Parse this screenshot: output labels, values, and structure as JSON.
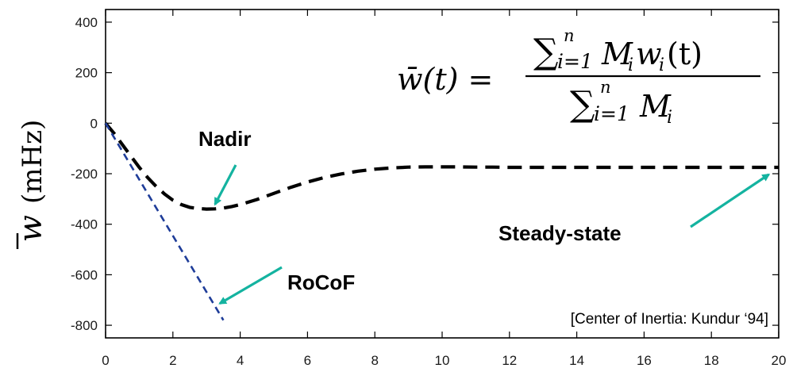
{
  "chart_data": {
    "type": "line",
    "title": "",
    "xlabel": "",
    "ylabel": "w̄ (mHz)",
    "xlim": [
      0,
      20
    ],
    "ylim": [
      -850,
      450
    ],
    "x_ticks": [
      "0",
      "2",
      "4",
      "6",
      "8",
      "10",
      "12",
      "14",
      "16",
      "18",
      "20"
    ],
    "y_ticks": [
      "400",
      "200",
      "0",
      "-200",
      "-400",
      "-600",
      "-800"
    ],
    "grid": false,
    "series": [
      {
        "style": "dashed-thick",
        "color": "#000000",
        "x": [
          0,
          0.25,
          0.5,
          0.75,
          1,
          1.25,
          1.5,
          1.75,
          2,
          2.25,
          2.5,
          2.75,
          3,
          3.25,
          3.5,
          3.75,
          4,
          4.5,
          5,
          5.5,
          6,
          6.5,
          7,
          7.5,
          8,
          8.5,
          9,
          9.5,
          10,
          10.5,
          11,
          11.5,
          12,
          13,
          14,
          15,
          16,
          17,
          18,
          19,
          20
        ],
        "values": [
          0,
          -40,
          -85,
          -130,
          -175,
          -215,
          -250,
          -280,
          -305,
          -322,
          -333,
          -338,
          -340,
          -339,
          -336,
          -330,
          -322,
          -302,
          -278,
          -254,
          -233,
          -215,
          -201,
          -190,
          -182,
          -177,
          -174,
          -173,
          -173,
          -173,
          -174,
          -174,
          -175,
          -175,
          -175,
          -175,
          -175,
          -175,
          -175,
          -175,
          -175
        ]
      },
      {
        "style": "dashed",
        "color": "#1f3d99",
        "x": [
          0,
          3.5
        ],
        "values": [
          0,
          -780
        ]
      }
    ],
    "annotations": {
      "nadir": {
        "label": "Nadir",
        "x": 3.3,
        "y": -340
      },
      "rocof": {
        "label": "RoCoF",
        "x": 3.3,
        "y": -720
      },
      "steady": {
        "label": "Steady-state",
        "x": 19.8,
        "y": -178
      }
    },
    "arrow_color": "#14b3a0",
    "formula": {
      "lhs": "w̄(t) =",
      "numerator_sum": "∑",
      "numerator_upper": "n",
      "numerator_lower": "i=1",
      "numerator_term": "M",
      "numerator_term_sub": "i",
      "numerator_term2": "w",
      "numerator_term2_sub": "i",
      "numerator_arg": "(t)",
      "denominator_sum": "∑",
      "denominator_upper": "n",
      "denominator_lower": "i=1",
      "denominator_term": "M",
      "denominator_term_sub": "i"
    },
    "citation": "[Center of Inertia: Kundur ‘94]"
  }
}
